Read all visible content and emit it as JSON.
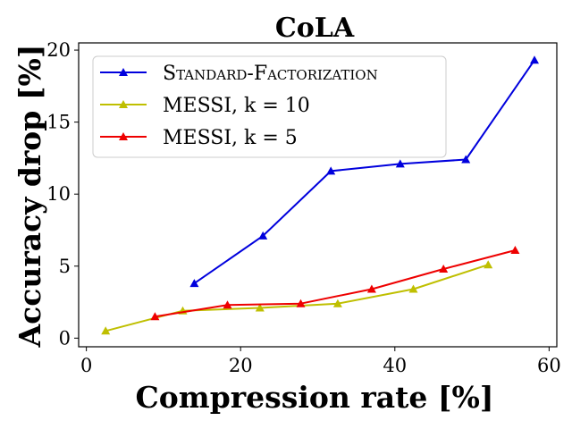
{
  "chart_data": {
    "type": "line",
    "title": "CoLA",
    "xlabel": "Compression rate [%]",
    "ylabel": "Accuracy drop [%]",
    "xlim": [
      -1,
      61
    ],
    "ylim": [
      -0.6,
      20.5
    ],
    "xticks": [
      0,
      20,
      40,
      60
    ],
    "yticks": [
      0,
      5,
      10,
      15,
      20
    ],
    "grid": false,
    "legend_position": "top-left",
    "series": [
      {
        "name": "Standard-Factorization",
        "color": "#0000dd",
        "marker": "triangle",
        "x": [
          14.0,
          22.9,
          31.7,
          40.7,
          49.2,
          58.1
        ],
        "y": [
          3.8,
          7.1,
          11.6,
          12.1,
          12.4,
          19.3
        ]
      },
      {
        "name": "MESSI, k = 10",
        "color": "#bfbf00",
        "marker": "triangle",
        "x": [
          2.5,
          12.5,
          22.5,
          32.6,
          42.4,
          52.1
        ],
        "y": [
          0.5,
          1.9,
          2.1,
          2.4,
          3.4,
          5.1
        ]
      },
      {
        "name": "MESSI, k = 5",
        "color": "#ee0000",
        "marker": "triangle",
        "x": [
          8.9,
          18.3,
          27.8,
          37.0,
          46.3,
          55.6
        ],
        "y": [
          1.5,
          2.3,
          2.4,
          3.4,
          4.8,
          6.1
        ]
      }
    ]
  }
}
